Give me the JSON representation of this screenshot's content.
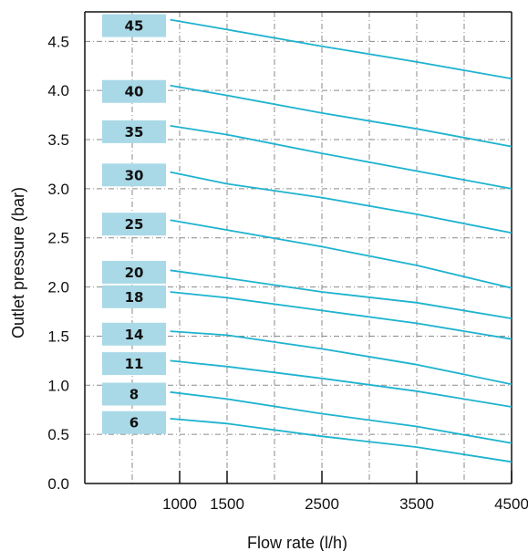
{
  "chart_data": {
    "type": "line",
    "title": "",
    "xlabel": "Flow rate (l/h)",
    "ylabel": "Outlet pressure (bar)",
    "xlim": [
      0,
      4500
    ],
    "ylim": [
      0,
      4.8
    ],
    "x_ticks": [
      {
        "value": 1000,
        "label": "1000"
      },
      {
        "value": 1500,
        "label": "1500"
      },
      {
        "value": 2500,
        "label": "2500"
      },
      {
        "value": 3500,
        "label": "3500"
      },
      {
        "value": 4500,
        "label": "4500"
      }
    ],
    "y_ticks": [
      {
        "value": 0.0,
        "label": "0.0"
      },
      {
        "value": 0.5,
        "label": "0.5"
      },
      {
        "value": 1.0,
        "label": "1.0"
      },
      {
        "value": 1.5,
        "label": "1.5"
      },
      {
        "value": 2.0,
        "label": "2.0"
      },
      {
        "value": 2.5,
        "label": "2.5"
      },
      {
        "value": 3.0,
        "label": "3.0"
      },
      {
        "value": 3.5,
        "label": "3.5"
      },
      {
        "value": 4.0,
        "label": "4.0"
      },
      {
        "value": 4.5,
        "label": "4.5"
      }
    ],
    "x_gridlines": [
      500,
      1000,
      1500,
      2000,
      2500,
      3000,
      3500,
      4000
    ],
    "y_gridlines": [
      0.5,
      1.0,
      1.5,
      2.0,
      2.5,
      3.0,
      3.5,
      4.0,
      4.5
    ],
    "grid": true,
    "line_color": "#1eb3cf",
    "tag_color": "#a9d9e7",
    "series": [
      {
        "name": "45",
        "label_y": 4.66,
        "x": [
          900,
          1500,
          2500,
          3500,
          4500
        ],
        "y": [
          4.72,
          4.62,
          4.45,
          4.29,
          4.12
        ]
      },
      {
        "name": "40",
        "label_y": 3.99,
        "x": [
          900,
          1500,
          2500,
          3500,
          4500
        ],
        "y": [
          4.05,
          3.95,
          3.77,
          3.61,
          3.43
        ]
      },
      {
        "name": "35",
        "label_y": 3.58,
        "x": [
          900,
          1500,
          2500,
          3500,
          4500
        ],
        "y": [
          3.64,
          3.55,
          3.36,
          3.18,
          3.0
        ]
      },
      {
        "name": "30",
        "label_y": 3.14,
        "x": [
          900,
          1500,
          2500,
          3500,
          4500
        ],
        "y": [
          3.17,
          3.05,
          2.91,
          2.74,
          2.55
        ]
      },
      {
        "name": "25",
        "label_y": 2.64,
        "x": [
          900,
          1500,
          2500,
          3500,
          4500
        ],
        "y": [
          2.68,
          2.58,
          2.41,
          2.22,
          1.99
        ]
      },
      {
        "name": "20",
        "label_y": 2.15,
        "x": [
          900,
          1500,
          2500,
          3500,
          4500
        ],
        "y": [
          2.17,
          2.09,
          1.95,
          1.84,
          1.68
        ]
      },
      {
        "name": "18",
        "label_y": 1.9,
        "x": [
          900,
          1500,
          2500,
          3500,
          4500
        ],
        "y": [
          1.95,
          1.89,
          1.76,
          1.63,
          1.47
        ]
      },
      {
        "name": "14",
        "label_y": 1.52,
        "x": [
          900,
          1500,
          2500,
          3500,
          4500
        ],
        "y": [
          1.55,
          1.51,
          1.37,
          1.21,
          1.01
        ]
      },
      {
        "name": "11",
        "label_y": 1.22,
        "x": [
          900,
          1500,
          2500,
          3500,
          4500
        ],
        "y": [
          1.25,
          1.19,
          1.07,
          0.94,
          0.78
        ]
      },
      {
        "name": "8",
        "label_y": 0.91,
        "x": [
          900,
          1500,
          2500,
          3500,
          4500
        ],
        "y": [
          0.93,
          0.86,
          0.71,
          0.58,
          0.41
        ]
      },
      {
        "name": "6",
        "label_y": 0.62,
        "x": [
          900,
          1500,
          2500,
          3500,
          4500
        ],
        "y": [
          0.66,
          0.61,
          0.48,
          0.37,
          0.22
        ]
      }
    ]
  }
}
